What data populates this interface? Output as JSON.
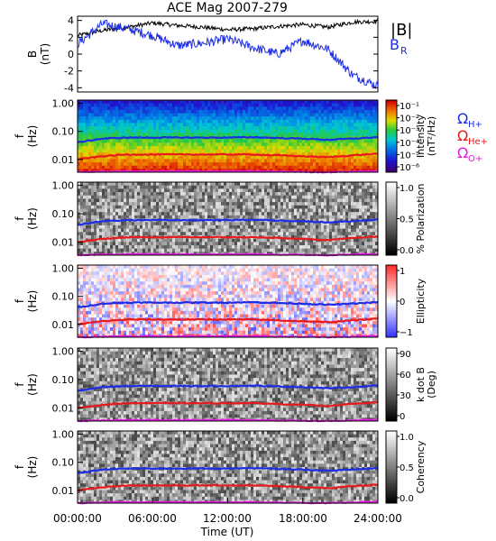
{
  "chart_data": [
    {
      "type": "line",
      "title": "ACE Mag 2007-279",
      "ylabel": "B",
      "yunit": "(nT)",
      "ylim": [
        -4.5,
        4.5
      ],
      "yticks": [
        "4",
        "2",
        "0",
        "-2",
        "-4"
      ],
      "legend": [
        "|B|",
        "B",
        "R"
      ],
      "x": [
        0,
        2,
        4,
        6,
        8,
        10,
        12,
        14,
        16,
        18,
        20,
        22,
        24
      ],
      "series": [
        {
          "name": "|B|",
          "color": "#000000",
          "values": [
            2.2,
            2.8,
            3.2,
            3.7,
            3.4,
            3.2,
            2.9,
            3.0,
            3.3,
            3.5,
            3.2,
            3.8,
            3.9
          ]
        },
        {
          "name": "B_R",
          "color": "#1c2de6",
          "values": [
            1.2,
            3.6,
            3.0,
            2.2,
            1.0,
            1.3,
            1.8,
            0.8,
            0.0,
            1.6,
            0.6,
            -2.5,
            -3.8
          ]
        }
      ]
    },
    {
      "type": "heatmap",
      "ylabel": "f",
      "yunit": "(Hz)",
      "yticks": [
        "1.00",
        "0.10",
        "0.01"
      ],
      "cbar_label": "Intensity",
      "cbar_unit": "(nT²/Hz)",
      "cbar_ticks": [
        "10⁻¹",
        "10⁻²",
        "10⁻³",
        "10⁻⁴",
        "10⁻⁵",
        "10⁻⁶"
      ],
      "legend": [
        {
          "symbol": "Ω",
          "sub": "H+",
          "color": "#1c2de6"
        },
        {
          "symbol": "Ω",
          "sub": "He+",
          "color": "#e8191c"
        },
        {
          "symbol": "Ω",
          "sub": "O+",
          "color": "#e619e0"
        }
      ]
    },
    {
      "type": "heatmap",
      "ylabel": "f",
      "yunit": "(Hz)",
      "yticks": [
        "1.00",
        "0.10",
        "0.01"
      ],
      "cbar_label": "% Polarization",
      "cbar_ticks": [
        "1.0",
        "0.5",
        "0.0"
      ]
    },
    {
      "type": "heatmap",
      "ylabel": "f",
      "yunit": "(Hz)",
      "yticks": [
        "1.00",
        "0.10",
        "0.01"
      ],
      "cbar_label": "Ellipticity",
      "cbar_ticks": [
        "1",
        "0",
        "−1"
      ]
    },
    {
      "type": "heatmap",
      "ylabel": "f",
      "yunit": "(Hz)",
      "yticks": [
        "1.00",
        "0.10",
        "0.01"
      ],
      "cbar_label": "k dot B",
      "cbar_unit": "(Deg)",
      "cbar_ticks": [
        "90",
        "60",
        "30",
        "0"
      ]
    },
    {
      "type": "heatmap",
      "ylabel": "f",
      "yunit": "(Hz)",
      "yticks": [
        "1.00",
        "0.10",
        "0.01"
      ],
      "cbar_label": "Coherency",
      "cbar_ticks": [
        "1.0",
        "0.5",
        "0.0"
      ]
    }
  ],
  "x_axis": {
    "label": "Time (UT)",
    "ticks": [
      "00:00:00",
      "06:00:00",
      "12:00:00",
      "18:00:00",
      "24:00:00"
    ]
  },
  "cyclotron_lines": {
    "H+": {
      "color": "#1c2de6",
      "values_hz": [
        0.04,
        0.055,
        0.06,
        0.06,
        0.06,
        0.06,
        0.06,
        0.062,
        0.058,
        0.055,
        0.05,
        0.055,
        0.062
      ]
    },
    "He+": {
      "color": "#e8191c",
      "values_hz": [
        0.01,
        0.013,
        0.015,
        0.015,
        0.015,
        0.015,
        0.015,
        0.015,
        0.014,
        0.013,
        0.012,
        0.014,
        0.016
      ]
    },
    "O+": {
      "color": "#e619e0",
      "values_hz": [
        0.0035,
        0.0037,
        0.0038,
        0.0038,
        0.0038,
        0.0038,
        0.0038,
        0.0038,
        0.0037,
        0.0036,
        0.0035,
        0.0037,
        0.0039
      ]
    }
  }
}
